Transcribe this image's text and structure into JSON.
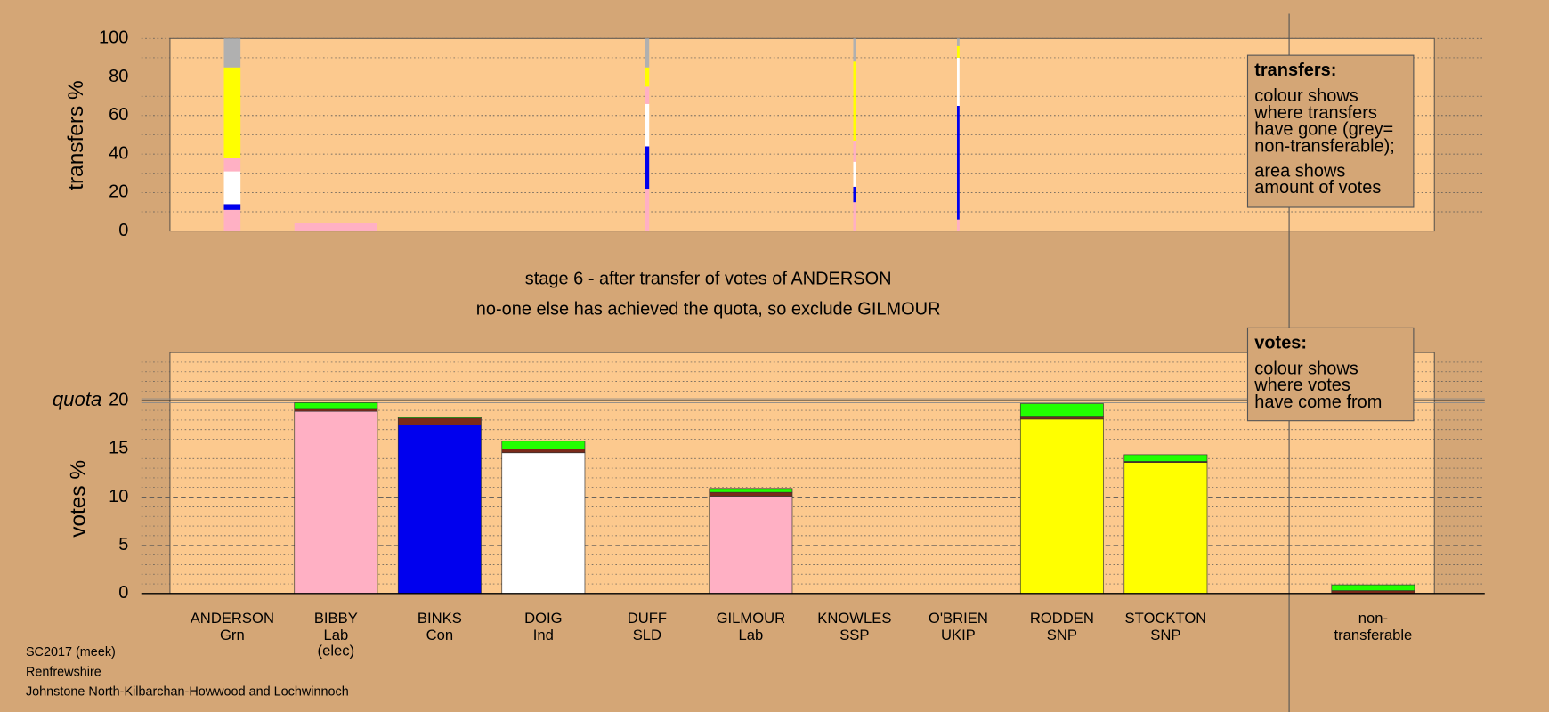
{
  "chart_data": [
    {
      "type": "stacked-bar",
      "ylabel": "transfers %",
      "ylim": [
        0,
        100
      ],
      "yticks": [
        0,
        20,
        40,
        60,
        80,
        100
      ],
      "minor_yticks": [
        10,
        30,
        50,
        70,
        90
      ],
      "grid": true,
      "widths": [
        0.2,
        1.0,
        null,
        null,
        0.05,
        null,
        0.03,
        0.03,
        null,
        null,
        null
      ],
      "series": [
        {
          "color": "#ffb0c4",
          "values": [
            11,
            null,
            null,
            null,
            22,
            null,
            15,
            6,
            null,
            null,
            null
          ]
        },
        {
          "color": "#0000ee",
          "values": [
            3,
            null,
            null,
            null,
            22,
            null,
            8,
            59,
            null,
            null,
            null
          ]
        },
        {
          "color": "#ffffff",
          "values": [
            17,
            null,
            null,
            null,
            22,
            null,
            13,
            25,
            null,
            null,
            null
          ]
        },
        {
          "color": "#ffb0c4",
          "values": [
            7,
            4,
            null,
            null,
            9,
            null,
            11,
            0,
            null,
            null,
            null
          ]
        },
        {
          "color": "#ffff00",
          "values": [
            47,
            null,
            null,
            null,
            10,
            null,
            41,
            6,
            null,
            null,
            null
          ]
        },
        {
          "color": "#b0b0b0",
          "values": [
            15,
            null,
            null,
            null,
            15,
            null,
            12,
            4,
            null,
            null,
            null
          ]
        }
      ]
    },
    {
      "type": "stacked-bar",
      "ylabel": "votes %",
      "ylim": [
        0,
        25
      ],
      "yticks": [
        0,
        5,
        10,
        15,
        20
      ],
      "minor_yticks": [
        1,
        2,
        3,
        4,
        6,
        7,
        8,
        9,
        11,
        12,
        13,
        14,
        16,
        17,
        18,
        19,
        21,
        22,
        23,
        24
      ],
      "grid": true,
      "quota": {
        "value": 20,
        "label": "quota"
      },
      "categories": [
        "ANDERSON",
        "BIBBY",
        "BINKS",
        "DOIG",
        "DUFF",
        "GILMOUR",
        "KNOWLES",
        "O'BRIEN",
        "RODDEN",
        "STOCKTON",
        "non-"
      ],
      "category_notes": [
        [
          "Grn"
        ],
        [
          "Lab",
          "(elec)"
        ],
        [
          "Con"
        ],
        [
          "Ind"
        ],
        [
          "SLD"
        ],
        [
          "Lab"
        ],
        [
          "SSP"
        ],
        [
          "UKIP"
        ],
        [
          "SNP"
        ],
        [
          "SNP"
        ],
        [
          "transferable"
        ]
      ],
      "series": [
        {
          "colors": [
            "#ffffff",
            "#ffb0c4",
            "#0000ee",
            "#ffffff",
            "#ffffff",
            "#ffb0c4",
            "#ffffff",
            "#ffffff",
            "#ffff00",
            "#ffff00",
            "#b0b0b0"
          ],
          "values": [
            0,
            18.9,
            17.5,
            14.6,
            0,
            10.1,
            0,
            0,
            18.1,
            13.6,
            0
          ]
        },
        {
          "color": "#7a2a1a",
          "values": [
            0,
            0.3,
            0.7,
            0.4,
            0,
            0.4,
            0,
            0,
            0.3,
            0.1,
            0.3
          ]
        },
        {
          "color": "#22ff00",
          "values": [
            0,
            0.6,
            0.1,
            0.8,
            0,
            0.4,
            0,
            0,
            1.3,
            0.7,
            0.6
          ]
        }
      ]
    }
  ],
  "stage_notes": [
    "stage 6 - after transfer of votes of ANDERSON",
    "no-one else has achieved the quota, so exclude GILMOUR"
  ],
  "legend_transfers": {
    "title": "transfers:",
    "lines": [
      "colour shows",
      "where transfers",
      "have gone (grey=",
      "non-transferable);"
    ],
    "lines2": [
      "area shows",
      "amount of votes"
    ]
  },
  "legend_votes": {
    "title": "votes:",
    "lines": [
      "colour shows",
      "where votes",
      "have come from"
    ]
  },
  "footer": [
    "SC2017 (meek)",
    "Renfrewshire",
    "Johnstone North-Kilbarchan-Howwood and Lochwinnoch"
  ]
}
